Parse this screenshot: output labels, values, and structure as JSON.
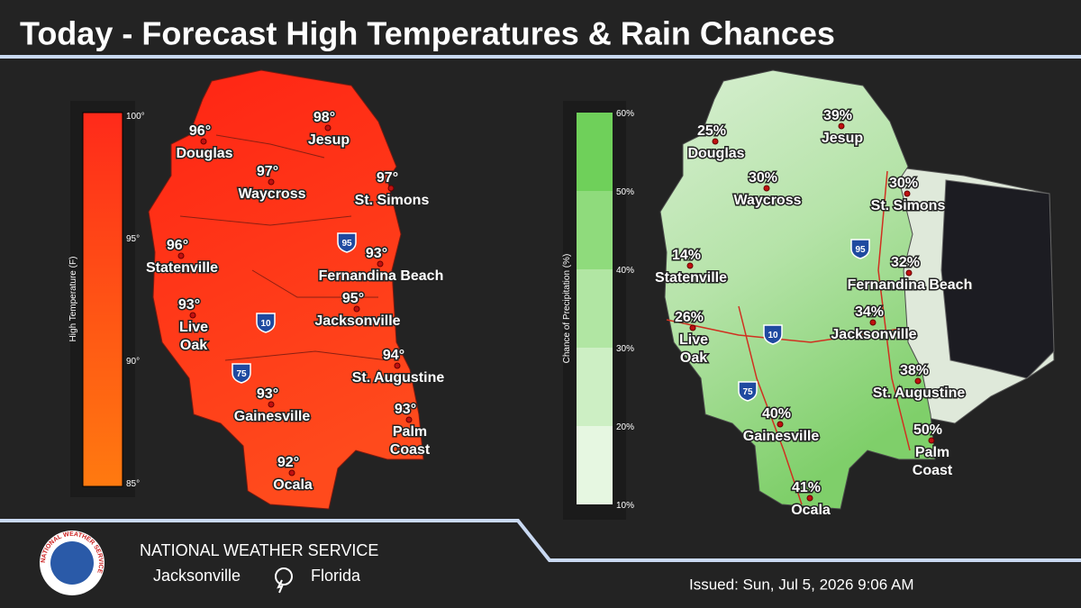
{
  "title": "Today - Forecast High Temperatures & Rain Chances",
  "maps": [
    {
      "legend": {
        "title": "High Temperature (F)",
        "ticks": [
          "100°",
          "95°",
          "90°",
          "85°"
        ]
      },
      "interstates": [
        "95",
        "10",
        "75"
      ],
      "cities": [
        {
          "name": [
            "Douglas"
          ],
          "value": "96°"
        },
        {
          "name": [
            "Jesup"
          ],
          "value": "98°"
        },
        {
          "name": [
            "Waycross"
          ],
          "value": "97°"
        },
        {
          "name": [
            "St. Simons"
          ],
          "value": "97°"
        },
        {
          "name": [
            "Statenville"
          ],
          "value": "96°"
        },
        {
          "name": [
            "Fernandina Beach"
          ],
          "value": "93°"
        },
        {
          "name": [
            "Live",
            "Oak"
          ],
          "value": "93°"
        },
        {
          "name": [
            "Jacksonville"
          ],
          "value": "95°"
        },
        {
          "name": [
            "St. Augustine"
          ],
          "value": "94°"
        },
        {
          "name": [
            "Gainesville"
          ],
          "value": "93°"
        },
        {
          "name": [
            "Palm",
            "Coast"
          ],
          "value": "93°"
        },
        {
          "name": [
            "Ocala"
          ],
          "value": "92°"
        }
      ]
    },
    {
      "legend": {
        "title": "Chance of Precipitation (%)",
        "ticks": [
          "60%",
          "50%",
          "40%",
          "30%",
          "20%",
          "10%"
        ]
      },
      "interstates": [
        "95",
        "10",
        "75"
      ],
      "cities": [
        {
          "name": [
            "Douglas"
          ],
          "value": "25%"
        },
        {
          "name": [
            "Jesup"
          ],
          "value": "39%"
        },
        {
          "name": [
            "Waycross"
          ],
          "value": "30%"
        },
        {
          "name": [
            "St. Simons"
          ],
          "value": "30%"
        },
        {
          "name": [
            "Statenville"
          ],
          "value": "14%"
        },
        {
          "name": [
            "Fernandina Beach"
          ],
          "value": "32%"
        },
        {
          "name": [
            "Live",
            "Oak"
          ],
          "value": "26%"
        },
        {
          "name": [
            "Jacksonville"
          ],
          "value": "34%"
        },
        {
          "name": [
            "St. Augustine"
          ],
          "value": "38%"
        },
        {
          "name": [
            "Gainesville"
          ],
          "value": "40%"
        },
        {
          "name": [
            "Palm",
            "Coast"
          ],
          "value": "50%"
        },
        {
          "name": [
            "Ocala"
          ],
          "value": "41%"
        }
      ]
    }
  ],
  "footer": {
    "org": "NATIONAL WEATHER SERVICE",
    "city": "Jacksonville",
    "state": "Florida",
    "issued": "Issued: Sun, Jul 5, 2026 9:06 AM"
  }
}
